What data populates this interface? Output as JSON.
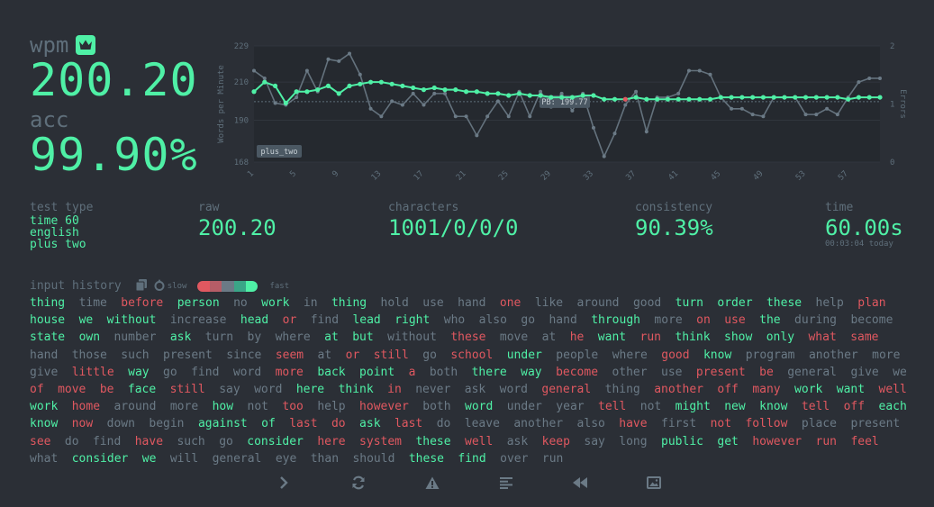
{
  "wpm": {
    "label": "wpm",
    "value": "200.20"
  },
  "acc": {
    "label": "acc",
    "value": "99.90%"
  },
  "stats": {
    "test_type": {
      "label": "test type",
      "lines": [
        "time 60",
        "english",
        "plus two"
      ]
    },
    "raw": {
      "label": "raw",
      "value": "200.20"
    },
    "characters": {
      "label": "characters",
      "value": "1001/0/0/0"
    },
    "consistency": {
      "label": "consistency",
      "value": "90.39%"
    },
    "time": {
      "label": "time",
      "value": "60.00s",
      "sub": "00:03:04 today"
    }
  },
  "input_history": {
    "label": "input history",
    "slow_label": "slow",
    "fast_label": "fast",
    "words": [
      [
        "thing",
        "c"
      ],
      [
        "time",
        "n"
      ],
      [
        "before",
        "e"
      ],
      [
        "person",
        "c"
      ],
      [
        "no",
        "n"
      ],
      [
        "work",
        "c"
      ],
      [
        "in",
        "n"
      ],
      [
        "thing",
        "c"
      ],
      [
        "hold",
        "n"
      ],
      [
        "use",
        "n"
      ],
      [
        "hand",
        "n"
      ],
      [
        "one",
        "e"
      ],
      [
        "like",
        "n"
      ],
      [
        "around",
        "n"
      ],
      [
        "good",
        "n"
      ],
      [
        "turn",
        "c"
      ],
      [
        "order",
        "c"
      ],
      [
        "these",
        "c"
      ],
      [
        "help",
        "n"
      ],
      [
        "plan",
        "e"
      ],
      [
        "house",
        "c"
      ],
      [
        "we",
        "c"
      ],
      [
        "without",
        "c"
      ],
      [
        "increase",
        "n"
      ],
      [
        "head",
        "c"
      ],
      [
        "or",
        "e"
      ],
      [
        "find",
        "n"
      ],
      [
        "lead",
        "c"
      ],
      [
        "right",
        "c"
      ],
      [
        "who",
        "n"
      ],
      [
        "also",
        "n"
      ],
      [
        "go",
        "n"
      ],
      [
        "hand",
        "n"
      ],
      [
        "through",
        "c"
      ],
      [
        "more",
        "n"
      ],
      [
        "on",
        "e"
      ],
      [
        "use",
        "e"
      ],
      [
        "the",
        "c"
      ],
      [
        "during",
        "n"
      ],
      [
        "become",
        "n"
      ],
      [
        "state",
        "c"
      ],
      [
        "own",
        "c"
      ],
      [
        "number",
        "n"
      ],
      [
        "ask",
        "c"
      ],
      [
        "turn",
        "n"
      ],
      [
        "by",
        "n"
      ],
      [
        "where",
        "n"
      ],
      [
        "at",
        "c"
      ],
      [
        "but",
        "c"
      ],
      [
        "without",
        "n"
      ],
      [
        "these",
        "e"
      ],
      [
        "move",
        "n"
      ],
      [
        "at",
        "n"
      ],
      [
        "he",
        "e"
      ],
      [
        "want",
        "c"
      ],
      [
        "run",
        "e"
      ],
      [
        "think",
        "c"
      ],
      [
        "show",
        "c"
      ],
      [
        "only",
        "c"
      ],
      [
        "what",
        "e"
      ],
      [
        "same",
        "e"
      ],
      [
        "hand",
        "n"
      ],
      [
        "those",
        "n"
      ],
      [
        "such",
        "n"
      ],
      [
        "present",
        "n"
      ],
      [
        "since",
        "n"
      ],
      [
        "seem",
        "e"
      ],
      [
        "at",
        "n"
      ],
      [
        "or",
        "e"
      ],
      [
        "still",
        "e"
      ],
      [
        "go",
        "n"
      ],
      [
        "school",
        "e"
      ],
      [
        "under",
        "c"
      ],
      [
        "people",
        "n"
      ],
      [
        "where",
        "n"
      ],
      [
        "good",
        "e"
      ],
      [
        "know",
        "c"
      ],
      [
        "program",
        "n"
      ],
      [
        "another",
        "n"
      ],
      [
        "more",
        "n"
      ],
      [
        "give",
        "n"
      ],
      [
        "little",
        "e"
      ],
      [
        "way",
        "c"
      ],
      [
        "go",
        "n"
      ],
      [
        "find",
        "n"
      ],
      [
        "word",
        "n"
      ],
      [
        "more",
        "e"
      ],
      [
        "back",
        "c"
      ],
      [
        "point",
        "c"
      ],
      [
        "a",
        "e"
      ],
      [
        "both",
        "n"
      ],
      [
        "there",
        "c"
      ],
      [
        "way",
        "c"
      ],
      [
        "become",
        "e"
      ],
      [
        "other",
        "n"
      ],
      [
        "use",
        "n"
      ],
      [
        "present",
        "e"
      ],
      [
        "be",
        "e"
      ],
      [
        "general",
        "n"
      ],
      [
        "give",
        "n"
      ],
      [
        "we",
        "n"
      ],
      [
        "of",
        "e"
      ],
      [
        "move",
        "e"
      ],
      [
        "be",
        "e"
      ],
      [
        "face",
        "c"
      ],
      [
        "still",
        "e"
      ],
      [
        "say",
        "n"
      ],
      [
        "word",
        "n"
      ],
      [
        "here",
        "c"
      ],
      [
        "think",
        "c"
      ],
      [
        "in",
        "e"
      ],
      [
        "never",
        "n"
      ],
      [
        "ask",
        "n"
      ],
      [
        "word",
        "n"
      ],
      [
        "general",
        "e"
      ],
      [
        "thing",
        "n"
      ],
      [
        "another",
        "e"
      ],
      [
        "off",
        "e"
      ],
      [
        "many",
        "e"
      ],
      [
        "work",
        "c"
      ],
      [
        "want",
        "c"
      ],
      [
        "well",
        "e"
      ],
      [
        "work",
        "c"
      ],
      [
        "home",
        "e"
      ],
      [
        "around",
        "n"
      ],
      [
        "more",
        "n"
      ],
      [
        "how",
        "c"
      ],
      [
        "not",
        "n"
      ],
      [
        "too",
        "e"
      ],
      [
        "help",
        "n"
      ],
      [
        "however",
        "e"
      ],
      [
        "both",
        "n"
      ],
      [
        "word",
        "c"
      ],
      [
        "under",
        "n"
      ],
      [
        "year",
        "n"
      ],
      [
        "tell",
        "e"
      ],
      [
        "not",
        "n"
      ],
      [
        "might",
        "c"
      ],
      [
        "new",
        "c"
      ],
      [
        "know",
        "c"
      ],
      [
        "tell",
        "e"
      ],
      [
        "off",
        "e"
      ],
      [
        "each",
        "c"
      ],
      [
        "know",
        "c"
      ],
      [
        "now",
        "e"
      ],
      [
        "down",
        "n"
      ],
      [
        "begin",
        "n"
      ],
      [
        "against",
        "c"
      ],
      [
        "of",
        "c"
      ],
      [
        "last",
        "e"
      ],
      [
        "do",
        "e"
      ],
      [
        "ask",
        "c"
      ],
      [
        "last",
        "e"
      ],
      [
        "do",
        "n"
      ],
      [
        "leave",
        "n"
      ],
      [
        "another",
        "n"
      ],
      [
        "also",
        "n"
      ],
      [
        "have",
        "e"
      ],
      [
        "first",
        "n"
      ],
      [
        "not",
        "e"
      ],
      [
        "follow",
        "e"
      ],
      [
        "place",
        "n"
      ],
      [
        "present",
        "n"
      ],
      [
        "see",
        "e"
      ],
      [
        "do",
        "n"
      ],
      [
        "find",
        "n"
      ],
      [
        "have",
        "e"
      ],
      [
        "such",
        "n"
      ],
      [
        "go",
        "n"
      ],
      [
        "consider",
        "c"
      ],
      [
        "here",
        "e"
      ],
      [
        "system",
        "e"
      ],
      [
        "these",
        "c"
      ],
      [
        "well",
        "e"
      ],
      [
        "ask",
        "n"
      ],
      [
        "keep",
        "e"
      ],
      [
        "say",
        "n"
      ],
      [
        "long",
        "n"
      ],
      [
        "public",
        "c"
      ],
      [
        "get",
        "c"
      ],
      [
        "however",
        "e"
      ],
      [
        "run",
        "e"
      ],
      [
        "feel",
        "e"
      ],
      [
        "what",
        "n"
      ],
      [
        "consider",
        "c"
      ],
      [
        "we",
        "c"
      ],
      [
        "will",
        "n"
      ],
      [
        "general",
        "n"
      ],
      [
        "eye",
        "n"
      ],
      [
        "than",
        "n"
      ],
      [
        "should",
        "n"
      ],
      [
        "these",
        "c"
      ],
      [
        "find",
        "c"
      ],
      [
        "over",
        "n"
      ],
      [
        "run",
        "n"
      ]
    ]
  },
  "chart_data": {
    "type": "line",
    "x": [
      1,
      2,
      3,
      4,
      5,
      6,
      7,
      8,
      9,
      10,
      11,
      12,
      13,
      14,
      15,
      16,
      17,
      18,
      19,
      20,
      21,
      22,
      23,
      24,
      25,
      26,
      27,
      28,
      29,
      30,
      31,
      32,
      33,
      34,
      35,
      36,
      37,
      38,
      39,
      40,
      41,
      42,
      43,
      44,
      45,
      46,
      47,
      48,
      49,
      50,
      51,
      52,
      53,
      54,
      55,
      56,
      57,
      58,
      59,
      60
    ],
    "x_ticks": [
      1,
      5,
      9,
      13,
      17,
      21,
      25,
      29,
      33,
      37,
      41,
      45,
      49,
      53,
      57
    ],
    "ylabel": "Words per Minute",
    "y2label": "Errors",
    "ylim": [
      168,
      229
    ],
    "y_ticks": [
      229,
      210,
      190,
      168
    ],
    "y2lim": [
      0,
      2
    ],
    "y2_ticks": [
      2,
      1,
      0
    ],
    "series": [
      {
        "name": "wpm",
        "color": "#4ff0a6",
        "values": [
          205,
          210,
          208,
          199,
          205,
          205,
          206,
          208,
          204,
          208,
          209,
          210,
          210,
          209,
          208,
          207,
          206,
          207,
          206,
          206,
          205,
          205,
          204,
          204,
          203,
          204,
          203,
          203,
          202,
          202,
          202,
          203,
          203,
          201,
          201,
          201,
          202,
          201,
          201,
          201,
          201,
          201,
          201,
          201,
          202,
          202,
          202,
          202,
          202,
          202,
          202,
          202,
          202,
          202,
          202,
          202,
          201,
          202,
          202,
          202
        ]
      },
      {
        "name": "raw",
        "color": "#6b7a86",
        "values": [
          216,
          212,
          199,
          198,
          202,
          216,
          205,
          222,
          221,
          225,
          214,
          196,
          192,
          200,
          198,
          204,
          198,
          204,
          204,
          192,
          192,
          182,
          192,
          200,
          192,
          205,
          192,
          205,
          197,
          204,
          195,
          204,
          186,
          171,
          183,
          198,
          205,
          184,
          202,
          202,
          204,
          216,
          216,
          214,
          202,
          196,
          196,
          193,
          192,
          202,
          202,
          202,
          193,
          193,
          196,
          193,
          202,
          210,
          212,
          212
        ]
      },
      {
        "name": "errors",
        "color": "#e05860",
        "values": [
          0,
          0,
          0,
          0,
          0,
          0,
          0,
          0,
          0,
          0,
          0,
          0,
          0,
          0,
          0,
          0,
          0,
          0,
          0,
          0,
          0,
          0,
          0,
          0,
          0,
          0,
          0,
          0,
          0,
          0,
          0,
          0,
          0,
          0,
          0,
          1,
          0,
          0,
          0,
          0,
          0,
          0,
          0,
          0,
          0,
          0,
          0,
          0,
          0,
          0,
          0,
          0,
          0,
          0,
          0,
          0,
          0,
          0,
          0,
          0
        ]
      }
    ],
    "pb": {
      "label": "PB: 199.77",
      "value": 199.77
    },
    "annotation": "plus_two"
  },
  "footer": {
    "icons": [
      "next-test-icon",
      "restart-icon",
      "warning-icon",
      "words-list-icon",
      "replay-icon",
      "screenshot-icon"
    ]
  },
  "colors": {
    "background": "#2b2f36",
    "accent": "#4ff0a6",
    "error": "#e05860",
    "sub": "#5f6f7b"
  }
}
